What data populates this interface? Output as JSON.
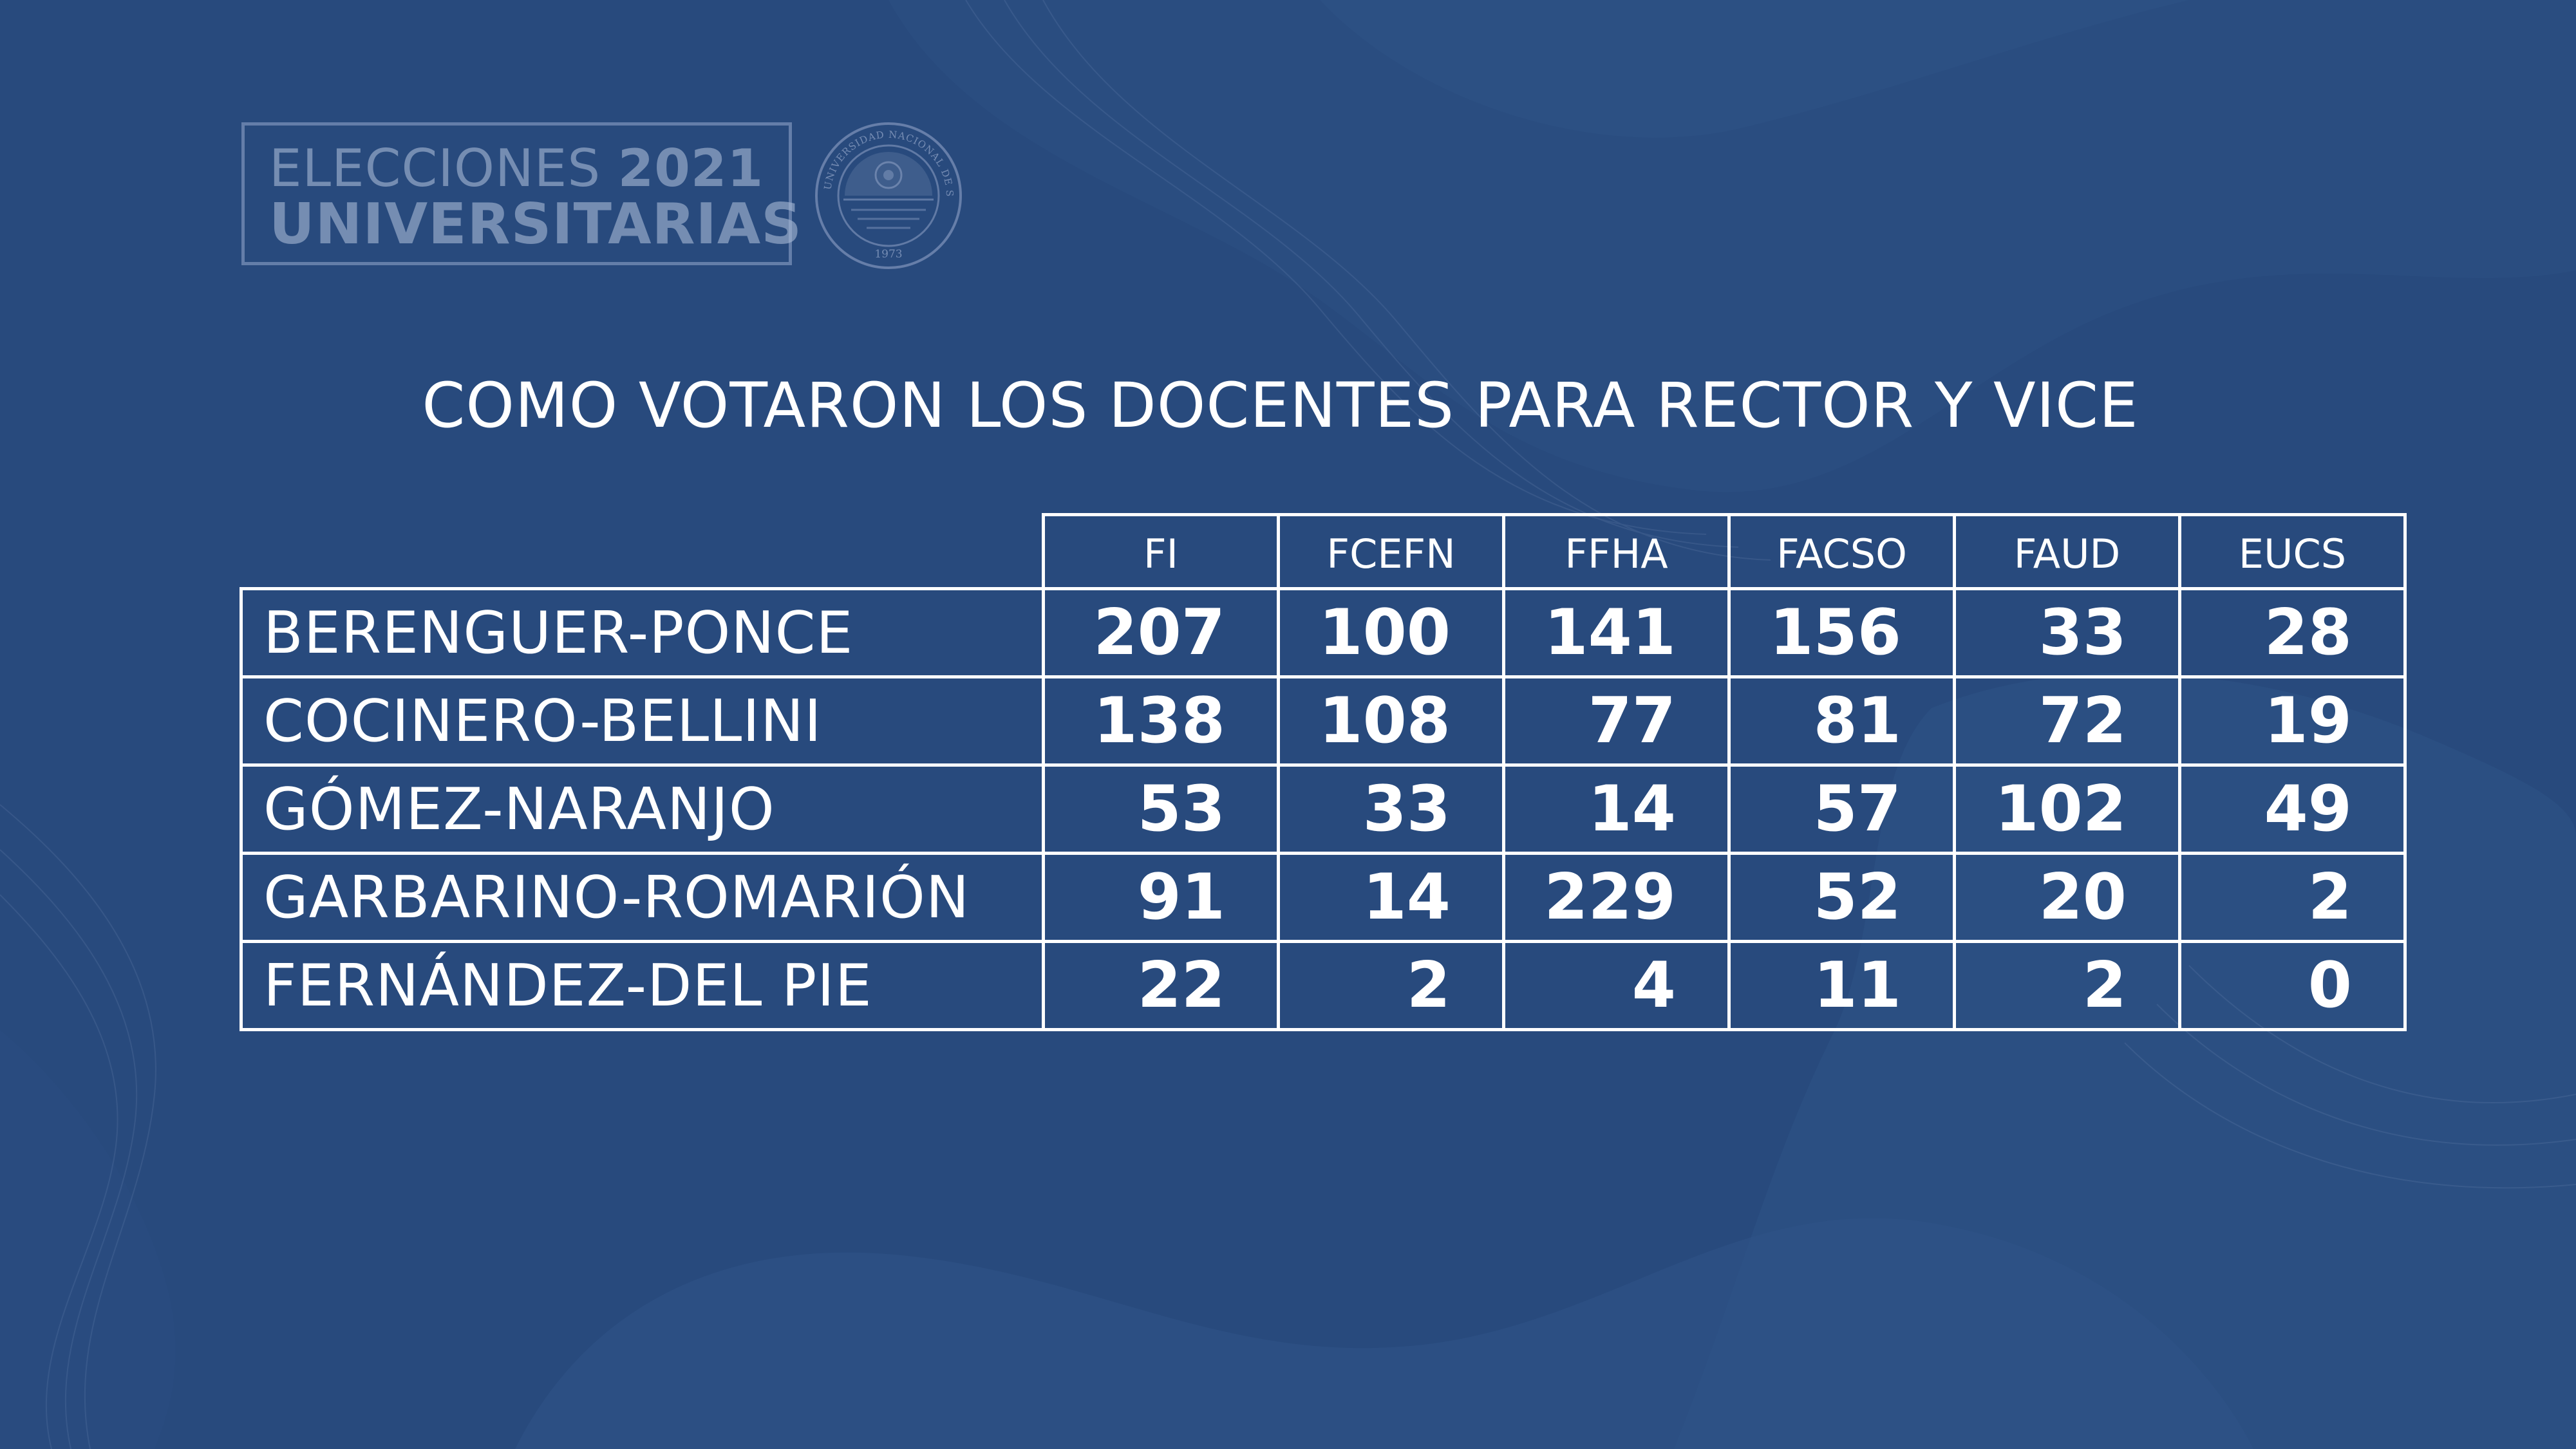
{
  "logo": {
    "line1_word": "ELECCIONES",
    "line1_year": "2021",
    "line2": "UNIVERSITARIAS",
    "seal_text": "UNIVERSIDAD NACIONAL DE SAN JUAN",
    "seal_year": "1973"
  },
  "title": "COMO VOTARON LOS DOCENTES PARA RECTOR Y VICE",
  "table": {
    "columns": [
      "FI",
      "FCEFN",
      "FFHA",
      "FACSO",
      "FAUD",
      "EUCS"
    ],
    "rows": [
      {
        "candidate": "BERENGUER-PONCE",
        "values": [
          "207",
          "100",
          "141",
          "156",
          "33",
          "28"
        ]
      },
      {
        "candidate": "COCINERO-BELLINI",
        "values": [
          "138",
          "108",
          "77",
          "81",
          "72",
          "19"
        ]
      },
      {
        "candidate": "GÓMEZ-NARANJO",
        "values": [
          "53",
          "33",
          "14",
          "57",
          "102",
          "49"
        ]
      },
      {
        "candidate": "GARBARINO-ROMARIÓN",
        "values": [
          "91",
          "14",
          "229",
          "52",
          "20",
          "2"
        ]
      },
      {
        "candidate": "FERNÁNDEZ-DEL PIE",
        "values": [
          "22",
          "2",
          "4",
          "11",
          "2",
          "0"
        ]
      }
    ]
  },
  "colors": {
    "background": "#284a7d",
    "text": "#ffffff",
    "logo_muted": "#a5b6d4"
  }
}
